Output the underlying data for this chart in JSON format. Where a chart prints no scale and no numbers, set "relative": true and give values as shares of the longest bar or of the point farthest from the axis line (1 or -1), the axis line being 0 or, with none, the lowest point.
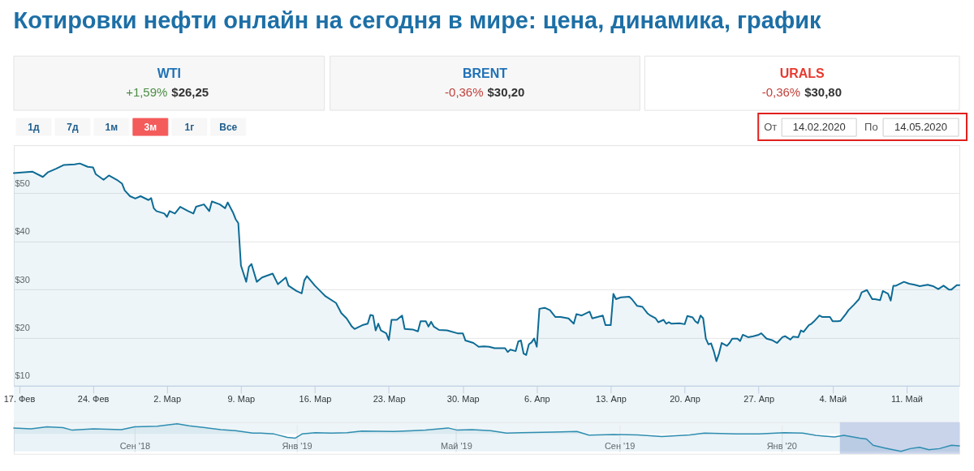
{
  "chart_data": [
    {
      "type": "other",
      "title": "Котировки нефти онлайн на сегодня в мире: цена, динамика, график",
      "annotations": [
        "WTI",
        "+1,59%",
        "$26,25",
        "BRENT",
        "-0,36%",
        "$30,20",
        "URALS",
        "-0,36%",
        "$30,80",
        "1д",
        "7д",
        "1м",
        "3м",
        "1г",
        "Все",
        "От",
        "14.02.2020",
        "По",
        "14.05.2020"
      ]
    },
    {
      "type": "area",
      "x": [
        "2020-02-16T12:00",
        "2020-02-17T00:00",
        "2020-02-18T06:00",
        "2020-02-19T06:00",
        "2020-02-19T18:00",
        "2020-02-20T12:00",
        "2020-02-21T06:00",
        "2020-02-22T06:00",
        "2020-02-22T18:00",
        "2020-02-23T12:00",
        "2020-02-24T00:00",
        "2020-02-24T06:00",
        "2020-02-25T00:00",
        "2020-02-25T12:00",
        "2020-02-26T06:00",
        "2020-02-26T18:00",
        "2020-02-27T00:00",
        "2020-02-27T12:00",
        "2020-02-28T00:00",
        "2020-02-28T12:00",
        "2020-02-29T06:00",
        "2020-02-29T12:00",
        "2020-02-29T18:00",
        "2020-03-01T00:00",
        "2020-03-01T18:00",
        "2020-03-02T00:00",
        "2020-03-02T06:00",
        "2020-03-02T18:00",
        "2020-03-03T06:00",
        "2020-03-04T00:00",
        "2020-03-04T12:00",
        "2020-03-04T18:00",
        "2020-03-05T12:00",
        "2020-03-06T00:00",
        "2020-03-06T06:00",
        "2020-03-07T00:00",
        "2020-03-07T12:00",
        "2020-03-07T18:00",
        "2020-03-08T06:00",
        "2020-03-08T12:00",
        "2020-03-08T18:00",
        "2020-03-09T00:00",
        "2020-03-09T12:00",
        "2020-03-09T18:00",
        "2020-03-10T00:00",
        "2020-03-10T12:00",
        "2020-03-11T00:00",
        "2020-03-12T00:00",
        "2020-03-12T12:00",
        "2020-03-13T06:00",
        "2020-03-13T12:00",
        "2020-03-14T06:00",
        "2020-03-14T18:00",
        "2020-03-15T00:00",
        "2020-03-15T06:00",
        "2020-03-16T00:00",
        "2020-03-16T12:00",
        "2020-03-17T00:00",
        "2020-03-18T00:00",
        "2020-03-18T12:00",
        "2020-03-19T00:00",
        "2020-03-19T12:00",
        "2020-03-19T18:00",
        "2020-03-20T12:00",
        "2020-03-21T00:00",
        "2020-03-21T06:00",
        "2020-03-21T12:00",
        "2020-03-21T18:00",
        "2020-03-22T00:00",
        "2020-03-22T06:00",
        "2020-03-22T18:00",
        "2020-03-23T00:00",
        "2020-03-23T06:00",
        "2020-03-23T18:00",
        "2020-03-24T06:00",
        "2020-03-24T12:00",
        "2020-03-25T06:00",
        "2020-03-25T18:00",
        "2020-03-26T00:00",
        "2020-03-26T12:00",
        "2020-03-26T18:00",
        "2020-03-27T00:00",
        "2020-03-27T06:00",
        "2020-03-27T18:00",
        "2020-03-28T12:00",
        "2020-03-29T12:00",
        "2020-03-30T00:00",
        "2020-03-30T06:00",
        "2020-03-31T00:00",
        "2020-03-31T12:00",
        "2020-04-01T00:00",
        "2020-04-01T12:00",
        "2020-04-02T00:00",
        "2020-04-02T12:00",
        "2020-04-03T00:00",
        "2020-04-03T06:00",
        "2020-04-03T12:00",
        "2020-04-04T00:00",
        "2020-04-04T06:00",
        "2020-04-04T12:00",
        "2020-04-04T18:00",
        "2020-04-05T00:00",
        "2020-04-05T06:00",
        "2020-04-05T12:00",
        "2020-04-05T18:00",
        "2020-04-06T00:00",
        "2020-04-06T06:00",
        "2020-04-06T18:00",
        "2020-04-07T06:00",
        "2020-04-07T18:00",
        "2020-04-08T06:00",
        "2020-04-09T00:00",
        "2020-04-09T12:00",
        "2020-04-09T18:00",
        "2020-04-10T06:00",
        "2020-04-11T00:00",
        "2020-04-11T06:00",
        "2020-04-11T18:00",
        "2020-04-12T06:00",
        "2020-04-12T12:00",
        "2020-04-13T00:00",
        "2020-04-13T06:00",
        "2020-04-13T12:00",
        "2020-04-14T00:00",
        "2020-04-14T18:00",
        "2020-04-15T00:00",
        "2020-04-15T12:00",
        "2020-04-16T00:00",
        "2020-04-16T12:00",
        "2020-04-16T18:00",
        "2020-04-17T06:00",
        "2020-04-17T12:00",
        "2020-04-18T00:00",
        "2020-04-18T06:00",
        "2020-04-18T12:00",
        "2020-04-18T18:00",
        "2020-04-19T12:00",
        "2020-04-20T00:00",
        "2020-04-20T06:00",
        "2020-04-20T18:00",
        "2020-04-21T00:00",
        "2020-04-21T06:00",
        "2020-04-21T12:00",
        "2020-04-21T18:00",
        "2020-04-22T00:00",
        "2020-04-22T06:00",
        "2020-04-22T12:00",
        "2020-04-22T18:00",
        "2020-04-23T00:00",
        "2020-04-23T06:00",
        "2020-04-23T12:00",
        "2020-04-24T00:00",
        "2020-04-24T06:00",
        "2020-04-24T12:00",
        "2020-04-25T00:00",
        "2020-04-25T06:00",
        "2020-04-25T12:00",
        "2020-04-26T00:00",
        "2020-04-26T12:00",
        "2020-04-27T00:00",
        "2020-04-27T06:00",
        "2020-04-27T18:00",
        "2020-04-28T06:00",
        "2020-04-28T18:00",
        "2020-04-29T06:00",
        "2020-04-29T12:00",
        "2020-04-30T00:00",
        "2020-04-30T06:00",
        "2020-04-30T18:00",
        "2020-05-01T00:00",
        "2020-05-01T06:00",
        "2020-05-01T18:00",
        "2020-05-02T00:00",
        "2020-05-02T06:00",
        "2020-05-02T18:00",
        "2020-05-03T00:00",
        "2020-05-03T18:00",
        "2020-05-04T00:00",
        "2020-05-04T12:00",
        "2020-05-04T18:00",
        "2020-05-05T06:00",
        "2020-05-05T12:00",
        "2020-05-06T00:00",
        "2020-05-06T12:00",
        "2020-05-06T18:00",
        "2020-05-07T06:00",
        "2020-05-07T18:00",
        "2020-05-08T00:00",
        "2020-05-08T12:00",
        "2020-05-08T18:00",
        "2020-05-09T06:00",
        "2020-05-09T12:00",
        "2020-05-09T18:00",
        "2020-05-10T00:00",
        "2020-05-10T18:00",
        "2020-05-11T06:00",
        "2020-05-11T18:00",
        "2020-05-12T06:00",
        "2020-05-13T00:00",
        "2020-05-13T12:00",
        "2020-05-14T00:00",
        "2020-05-14T12:00",
        "2020-05-15T00:00",
        "2020-05-15T06:00",
        "2020-05-15T18:00",
        "2020-05-16T00:00"
      ],
      "series": [
        {
          "color": "#0d6b95",
          "values": [
            54.2,
            54.3,
            54.5,
            53.4,
            54.4,
            55.1,
            55.9,
            56.0,
            56.2,
            55.5,
            55.4,
            54.0,
            52.8,
            53.7,
            52.8,
            52.0,
            50.6,
            49.4,
            48.9,
            49.4,
            48.6,
            49.0,
            46.9,
            46.3,
            45.8,
            45.1,
            46.3,
            45.8,
            47.2,
            46.3,
            45.8,
            47.2,
            47.7,
            46.3,
            48.3,
            47.7,
            46.9,
            48.1,
            46.0,
            44.6,
            43.8,
            35.0,
            31.6,
            34.7,
            35.3,
            31.6,
            32.5,
            33.3,
            31.1,
            32.5,
            30.8,
            29.7,
            29.2,
            31.9,
            32.8,
            30.8,
            29.7,
            28.6,
            27.2,
            25.1,
            24.0,
            22.3,
            21.8,
            22.6,
            22.9,
            24.7,
            24.6,
            21.5,
            22.9,
            21.5,
            20.9,
            19.5,
            23.7,
            23.7,
            24.6,
            21.8,
            21.7,
            21.3,
            23.4,
            23.4,
            22.3,
            23.3,
            22.3,
            21.6,
            21.5,
            20.9,
            20.9,
            19.4,
            18.9,
            18.1,
            18.2,
            18.1,
            17.8,
            17.8,
            17.8,
            17.0,
            17.5,
            17.2,
            19.2,
            19.4,
            16.7,
            16.4,
            18.6,
            19.0,
            19.8,
            18.1,
            26.0,
            26.2,
            25.7,
            24.3,
            24.3,
            24.0,
            22.9,
            24.9,
            24.6,
            25.4,
            24.0,
            24.3,
            24.6,
            22.6,
            22.6,
            29.1,
            28.0,
            28.4,
            28.5,
            28.0,
            26.6,
            26.4,
            25.0,
            24.6,
            24.0,
            23.2,
            23.7,
            22.9,
            23.2,
            22.9,
            23.0,
            22.8,
            24.5,
            24.2,
            23.4,
            23.0,
            24.6,
            24.0,
            19.8,
            18.6,
            18.8,
            17.2,
            15.1,
            16.7,
            18.9,
            18.3,
            18.9,
            19.8,
            19.8,
            19.3,
            20.6,
            20.1,
            20.3,
            20.6,
            20.9,
            19.8,
            19.5,
            18.9,
            20.1,
            20.3,
            19.6,
            20.2,
            20.1,
            21.5,
            21.2,
            22.6,
            22.9,
            23.4,
            24.6,
            24.3,
            24.3,
            23.4,
            23.4,
            23.5,
            24.9,
            25.7,
            26.8,
            28.0,
            29.4,
            29.9,
            28.0,
            28.0,
            27.8,
            29.7,
            29.1,
            27.7,
            30.8,
            30.8,
            31.6,
            31.2,
            31.0,
            30.7,
            31.0,
            30.7,
            30.1,
            30.8,
            30.0,
            30.0,
            30.9,
            30.9
          ]
        }
      ],
      "xlim": [
        "2020-02-16T12:00",
        "2020-05-16T00:00"
      ],
      "xticks": [
        {
          "value": "2020-02-17",
          "label": "17. Фев"
        },
        {
          "value": "2020-02-24",
          "label": "24. Фев"
        },
        {
          "value": "2020-03-02",
          "label": "2. Мар"
        },
        {
          "value": "2020-03-09",
          "label": "9. Мар"
        },
        {
          "value": "2020-03-16",
          "label": "16. Мар"
        },
        {
          "value": "2020-03-23",
          "label": "23. Мар"
        },
        {
          "value": "2020-03-30",
          "label": "30. Мар"
        },
        {
          "value": "2020-04-06",
          "label": "6. Апр"
        },
        {
          "value": "2020-04-13",
          "label": "13. Апр"
        },
        {
          "value": "2020-04-20",
          "label": "20. Апр"
        },
        {
          "value": "2020-04-27",
          "label": "27. Апр"
        },
        {
          "value": "2020-05-04",
          "label": "4. Май"
        },
        {
          "value": "2020-05-11",
          "label": "11. Май"
        }
      ],
      "ylim": [
        10,
        60
      ],
      "yticks": [
        {
          "value": 10,
          "label": "$10"
        },
        {
          "value": 20,
          "label": "$20"
        },
        {
          "value": 30,
          "label": "$30"
        },
        {
          "value": 40,
          "label": "$40"
        },
        {
          "value": 50,
          "label": "$50"
        },
        {
          "value": 60,
          "label": null
        }
      ],
      "grid": "y"
    },
    {
      "type": "area",
      "relative": true,
      "x": [
        "2018-06-02",
        "2018-06-15",
        "2018-06-27",
        "2018-07-09",
        "2018-07-16",
        "2018-08-01",
        "2018-08-22",
        "2018-09-01",
        "2018-09-18",
        "2018-10-03",
        "2018-10-12",
        "2018-10-24",
        "2018-11-05",
        "2018-11-16",
        "2018-11-29",
        "2018-12-05",
        "2018-12-15",
        "2018-12-25",
        "2018-12-31",
        "2019-01-05",
        "2019-01-15",
        "2019-01-27",
        "2019-02-08",
        "2019-02-19",
        "2019-03-15",
        "2019-04-08",
        "2019-04-25",
        "2019-05-02",
        "2019-05-13",
        "2019-05-27",
        "2019-06-08",
        "2019-06-19",
        "2019-07-13",
        "2019-07-31",
        "2019-08-09",
        "2019-08-28",
        "2019-09-15",
        "2019-10-03",
        "2019-10-24",
        "2019-11-04",
        "2019-11-28",
        "2019-12-15",
        "2020-01-03",
        "2020-01-17",
        "2020-01-27",
        "2020-02-10",
        "2020-02-17",
        "2020-02-29",
        "2020-03-05",
        "2020-03-10",
        "2020-03-19",
        "2020-03-31",
        "2020-04-07",
        "2020-04-14",
        "2020-04-21",
        "2020-04-29",
        "2020-05-08",
        "2020-05-14"
      ],
      "series": [
        {
          "color": "#2e8db0",
          "values": [
            0.85,
            0.82,
            0.89,
            0.86,
            0.77,
            0.82,
            0.79,
            0.89,
            0.91,
            1.0,
            0.93,
            0.86,
            0.79,
            0.75,
            0.66,
            0.66,
            0.63,
            0.51,
            0.48,
            0.63,
            0.68,
            0.66,
            0.68,
            0.74,
            0.72,
            0.77,
            0.85,
            0.77,
            0.79,
            0.75,
            0.66,
            0.68,
            0.7,
            0.72,
            0.59,
            0.61,
            0.6,
            0.54,
            0.6,
            0.66,
            0.63,
            0.63,
            0.68,
            0.66,
            0.58,
            0.52,
            0.58,
            0.48,
            0.45,
            0.22,
            0.12,
            0.0,
            0.1,
            0.15,
            0.06,
            0.1,
            0.22,
            0.2
          ]
        }
      ],
      "xlim": [
        "2018-06-02",
        "2020-05-14"
      ],
      "xticks": [
        {
          "value": "2018-09-01",
          "label": "Сен '18"
        },
        {
          "value": "2019-01-01",
          "label": "Янв '19"
        },
        {
          "value": "2019-05-01",
          "label": "Май '19"
        },
        {
          "value": "2019-09-01",
          "label": "Сен '19"
        },
        {
          "value": "2020-01-01",
          "label": "Янв '20"
        }
      ],
      "grid": "x",
      "bands": [
        {
          "axis": "x",
          "from": "2020-02-14",
          "to": "2020-05-14",
          "color": "#c9d4ea"
        }
      ]
    }
  ]
}
